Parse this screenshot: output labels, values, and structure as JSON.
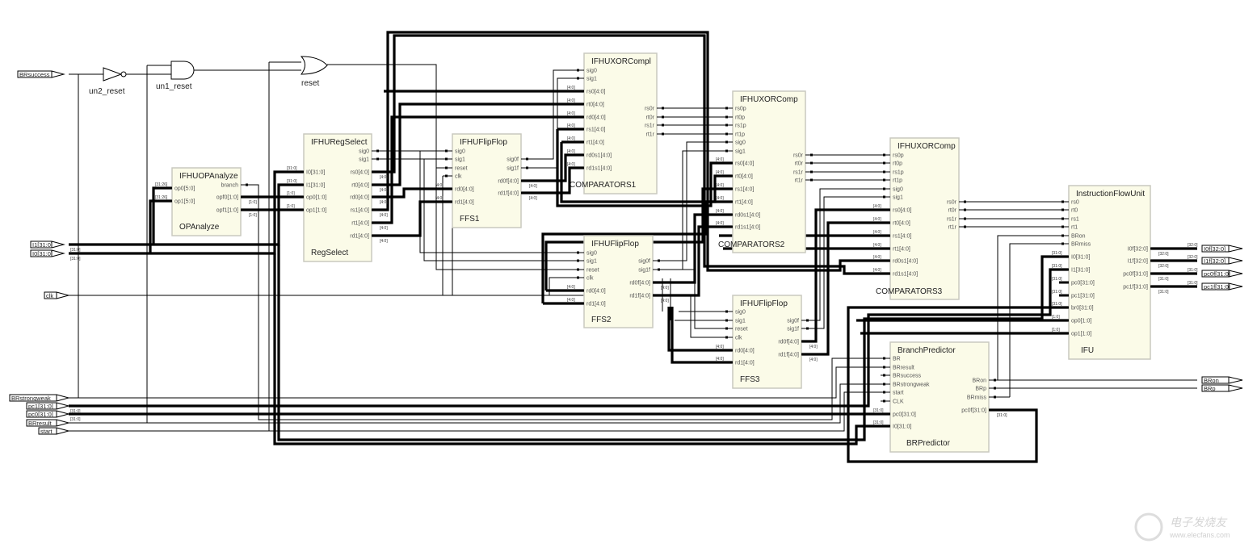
{
  "gates": [
    {
      "type": "not",
      "label": "un2_reset"
    },
    {
      "type": "and",
      "label": "un1_reset"
    },
    {
      "type": "or",
      "label": "reset"
    }
  ],
  "input_ports": [
    "BRsuccess",
    "I1[31:0]",
    "I0[31:0]",
    "clk",
    "BRstrongweak",
    "pc1[31:0]",
    "pc0[31:0]",
    "BRresult",
    "start"
  ],
  "output_ports": [
    "I0f[32:0]",
    "I1f[32:0]",
    "pc0f[31:0]",
    "pc1f[31:0]",
    "BRon",
    "BRp"
  ],
  "bus_labels": {
    "w5": "[4:0]",
    "w32": "[31:0]",
    "w2": "[1:0]",
    "op": "[31:26]",
    "w33": "[32:0]"
  },
  "blocks": [
    {
      "module": "IFHUOPAnalyze",
      "instance": "OPAnalyze",
      "inputs": [
        "op0[5:0]",
        "op1[5:0]"
      ],
      "outputs": [
        "branch",
        "opf0[1:0]",
        "opf1[1:0]"
      ]
    },
    {
      "module": "IFHURegSelect",
      "instance": "RegSelect",
      "inputs": [
        "I0[31:0]",
        "I1[31:0]",
        "op0[1:0]",
        "op1[1:0]"
      ],
      "outputs": [
        "sig0",
        "sig1",
        "rs0[4:0]",
        "rt0[4:0]",
        "rd0[4:0]",
        "rs1[4:0]",
        "rt1[4:0]",
        "rd1[4:0]"
      ]
    },
    {
      "module": "IFHUFlipFlop",
      "instance": "FFS1",
      "inputs": [
        "sig0",
        "sig1",
        "reset",
        "clk",
        "rd0[4:0]",
        "rd1[4:0]"
      ],
      "outputs": [
        "sig0f",
        "sig1f",
        "rd0f[4:0]",
        "rd1f[4:0]"
      ]
    },
    {
      "module": "IFHUXORCompl",
      "instance": "COMPARATORS1",
      "inputs": [
        "sig0",
        "sig1",
        "rs0[4:0]",
        "rt0[4:0]",
        "rd0[4:0]",
        "rs1[4:0]",
        "rt1[4:0]",
        "rd0s1[4:0]",
        "rd1s1[4:0]"
      ],
      "outputs": [
        "rs0r",
        "rt0r",
        "rs1r",
        "rt1r"
      ]
    },
    {
      "module": "IFHUXORComp",
      "instance": "COMPARATORS2",
      "inputs": [
        "rs0p",
        "rt0p",
        "rs1p",
        "rt1p",
        "sig0",
        "sig1",
        "rs0[4:0]",
        "rt0[4:0]",
        "rs1[4:0]",
        "rt1[4:0]",
        "rd0s1[4:0]",
        "rd1s1[4:0]"
      ],
      "outputs": [
        "rs0r",
        "rt0r",
        "rs1r",
        "rt1r"
      ]
    },
    {
      "module": "IFHUFlipFlop",
      "instance": "FFS2",
      "inputs": [
        "sig0",
        "sig1",
        "reset",
        "clk",
        "rd0[4:0]",
        "rd1[4:0]"
      ],
      "outputs": [
        "sig0f",
        "sig1f",
        "rd0f[4:0]",
        "rd1f[4:0]"
      ]
    },
    {
      "module": "IFHUFlipFlop",
      "instance": "FFS3",
      "inputs": [
        "sig0",
        "sig1",
        "reset",
        "clk",
        "rd0[4:0]",
        "rd1[4:0]"
      ],
      "outputs": [
        "sig0f",
        "sig1f",
        "rd0f[4:0]",
        "rd1f[4:0]"
      ]
    },
    {
      "module": "IFHUXORComp",
      "instance": "COMPARATORS3",
      "inputs": [
        "rs0p",
        "rt0p",
        "rs1p",
        "rt1p",
        "sig0",
        "sig1",
        "rs0[4:0]",
        "rt0[4:0]",
        "rs1[4:0]",
        "rt1[4:0]",
        "rd0s1[4:0]",
        "rd1s1[4:0]"
      ],
      "outputs": [
        "rs0r",
        "rt0r",
        "rs1r",
        "rt1r"
      ]
    },
    {
      "module": "InstructionFlowUnit",
      "instance": "IFU",
      "inputs": [
        "rs0",
        "rt0",
        "rs1",
        "rt1",
        "BRon",
        "BRmiss",
        "I0[31:0]",
        "I1[31:0]",
        "pc0[31:0]",
        "pc1[31:0]",
        "br0[31:0]",
        "op0[1:0]",
        "op1[1:0]"
      ],
      "outputs": [
        "I0f[32:0]",
        "I1f[32:0]",
        "pc0f[31:0]",
        "pc1f[31:0]"
      ]
    },
    {
      "module": "BranchPredictor",
      "instance": "BRPredictor",
      "inputs": [
        "BR",
        "BRresult",
        "BRsuccess",
        "BRstrongweak",
        "start",
        "CLK",
        "pc0[31:0]",
        "I0[31:0]"
      ],
      "outputs": [
        "BRon",
        "BRp",
        "BRmiss",
        "pc0f[31:0]"
      ]
    }
  ],
  "watermark": {
    "brand": "电子发烧友",
    "url": "www.elecfans.com"
  }
}
